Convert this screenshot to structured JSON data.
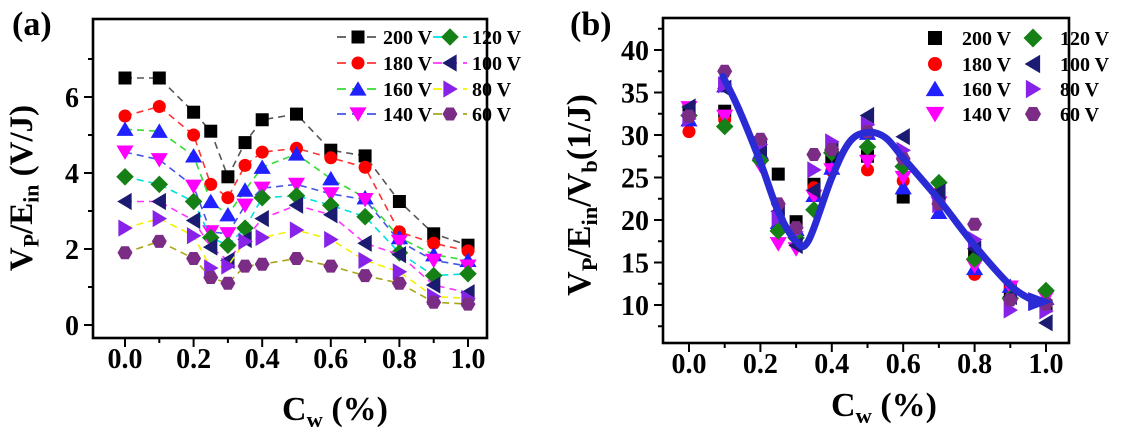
{
  "figure": {
    "background": "#ffffff"
  },
  "chart_data": [
    {
      "panel_label": "(a)",
      "type": "scatter",
      "xlabel": "Cw (%)",
      "ylabel": "VP/Ein (V/J)",
      "xlabel_parts": [
        {
          "t": "C"
        },
        {
          "t": "w",
          "sub": true
        },
        {
          "t": " (%)"
        }
      ],
      "ylabel_parts": [
        {
          "t": "V"
        },
        {
          "t": "P",
          "sub": true
        },
        {
          "t": "/E"
        },
        {
          "t": "in",
          "sub": true
        },
        {
          "t": " (V/J)"
        }
      ],
      "xlim": [
        -0.095,
        1.053
      ],
      "ylim": [
        -0.35,
        8.05
      ],
      "grid": false,
      "legend_position": "top-right-two-columns",
      "x_major_ticks": [
        {
          "v": 0.0,
          "label": "0.0"
        },
        {
          "v": 0.2,
          "label": "0.2"
        },
        {
          "v": 0.4,
          "label": "0.4"
        },
        {
          "v": 0.6,
          "label": "0.6"
        },
        {
          "v": 0.8,
          "label": "0.8"
        },
        {
          "v": 1.0,
          "label": "1.0"
        }
      ],
      "x_minor_ticks": [
        0.1,
        0.3,
        0.5,
        0.7,
        0.9
      ],
      "y_major_ticks": [
        {
          "v": 0,
          "label": "0"
        },
        {
          "v": 2,
          "label": "2"
        },
        {
          "v": 4,
          "label": "4"
        },
        {
          "v": 6,
          "label": "6"
        }
      ],
      "y_minor_ticks": [
        1,
        3,
        5,
        7
      ],
      "x": [
        0.0,
        0.1,
        0.2,
        0.25,
        0.3,
        0.35,
        0.4,
        0.5,
        0.6,
        0.7,
        0.8,
        0.9,
        1.0
      ],
      "series": [
        {
          "name": "200 V",
          "marker": "square",
          "color": "#000000",
          "line_color": "#555555",
          "values": [
            6.5,
            6.5,
            5.6,
            5.1,
            3.9,
            4.8,
            5.4,
            5.55,
            4.6,
            4.45,
            3.25,
            2.4,
            2.1
          ]
        },
        {
          "name": "180 V",
          "marker": "circle",
          "color": "#ff0000",
          "line_color": "#ff3333",
          "values": [
            5.5,
            5.75,
            5.0,
            3.7,
            3.35,
            4.2,
            4.55,
            4.65,
            4.4,
            4.15,
            2.45,
            2.15,
            1.95
          ]
        },
        {
          "name": "160 V",
          "marker": "tri-up",
          "color": "#2121ff",
          "line_color": "#33dd33",
          "values": [
            5.15,
            5.1,
            4.45,
            3.25,
            2.9,
            3.55,
            4.15,
            4.5,
            3.85,
            3.35,
            2.3,
            1.85,
            1.7
          ]
        },
        {
          "name": "140 V",
          "marker": "tri-down",
          "color": "#ff00ff",
          "line_color": "#4455e6",
          "values": [
            4.55,
            4.35,
            3.65,
            2.45,
            2.4,
            3.15,
            3.6,
            3.7,
            3.45,
            3.3,
            2.2,
            1.7,
            1.55
          ]
        },
        {
          "name": "120 V",
          "marker": "diamond",
          "color": "#158015",
          "line_color": "#00e0e0",
          "values": [
            3.9,
            3.7,
            3.25,
            2.3,
            2.1,
            2.55,
            3.35,
            3.4,
            3.15,
            2.85,
            1.9,
            1.3,
            1.35
          ]
        },
        {
          "name": "100 V",
          "marker": "tri-left",
          "color": "#1b1b72",
          "line_color": "#ff33ff",
          "values": [
            3.25,
            3.25,
            2.75,
            2.05,
            1.7,
            2.25,
            2.8,
            3.15,
            2.9,
            2.15,
            1.85,
            1.05,
            0.85
          ]
        },
        {
          "name": "80 V",
          "marker": "tri-right",
          "color": "#8822e8",
          "line_color": "#f2f200",
          "values": [
            2.55,
            2.8,
            2.35,
            1.5,
            1.55,
            2.2,
            2.3,
            2.5,
            2.25,
            1.7,
            1.4,
            0.75,
            0.7
          ]
        },
        {
          "name": "60 V",
          "marker": "hexagon",
          "color": "#7b2d85",
          "line_color": "#a6a618",
          "values": [
            1.9,
            2.2,
            1.75,
            1.25,
            1.1,
            1.55,
            1.6,
            1.75,
            1.55,
            1.3,
            1.1,
            0.6,
            0.55
          ]
        }
      ]
    },
    {
      "panel_label": "(b)",
      "type": "scatter",
      "xlabel": "Cw (%)",
      "ylabel": "VP/Ein/Vb(1/J)",
      "xlabel_parts": [
        {
          "t": "C"
        },
        {
          "t": "w",
          "sub": true
        },
        {
          "t": " (%)"
        }
      ],
      "ylabel_parts": [
        {
          "t": "V"
        },
        {
          "t": "P",
          "sub": true
        },
        {
          "t": "/E"
        },
        {
          "t": "in",
          "sub": true
        },
        {
          "t": "/V"
        },
        {
          "t": "b",
          "sub": true
        },
        {
          "t": "(1/J)"
        }
      ],
      "xlim": [
        -0.073,
        1.064
      ],
      "ylim": [
        5.5,
        43.8
      ],
      "grid": false,
      "legend_position": "top-right-two-columns",
      "x_major_ticks": [
        {
          "v": 0.0,
          "label": "0.0"
        },
        {
          "v": 0.2,
          "label": "0.2"
        },
        {
          "v": 0.4,
          "label": "0.4"
        },
        {
          "v": 0.6,
          "label": "0.6"
        },
        {
          "v": 0.8,
          "label": "0.8"
        },
        {
          "v": 1.0,
          "label": "1.0"
        }
      ],
      "x_minor_ticks": [
        0.1,
        0.3,
        0.5,
        0.7,
        0.9
      ],
      "y_major_ticks": [
        {
          "v": 10,
          "label": "10"
        },
        {
          "v": 15,
          "label": "15"
        },
        {
          "v": 20,
          "label": "20"
        },
        {
          "v": 25,
          "label": "25"
        },
        {
          "v": 30,
          "label": "30"
        },
        {
          "v": 35,
          "label": "35"
        },
        {
          "v": 40,
          "label": "40"
        }
      ],
      "y_minor_ticks": [
        7.5,
        12.5,
        17.5,
        22.5,
        27.5,
        32.5,
        37.5,
        42.5
      ],
      "x": [
        0.0,
        0.1,
        0.2,
        0.25,
        0.3,
        0.35,
        0.4,
        0.5,
        0.6,
        0.7,
        0.8,
        0.9,
        1.0
      ],
      "series": [
        {
          "name": "200 V",
          "marker": "square",
          "color": "#000000",
          "values": [
            33.0,
            32.8,
            28.3,
            25.4,
            19.8,
            24.2,
            27.1,
            27.5,
            22.7,
            22.8,
            16.4,
            11.8,
            9.9
          ]
        },
        {
          "name": "180 V",
          "marker": "circle",
          "color": "#ff0000",
          "values": [
            30.4,
            31.8,
            27.4,
            20.8,
            18.4,
            23.8,
            25.8,
            25.9,
            24.6,
            23.2,
            13.6,
            11.9,
            10.3
          ]
        },
        {
          "name": "160 V",
          "marker": "tri-up",
          "color": "#2121ff",
          "values": [
            31.8,
            35.8,
            27.9,
            19.7,
            18.9,
            22.9,
            26.1,
            30.2,
            23.8,
            20.9,
            14.3,
            12.2,
            10.8
          ]
        },
        {
          "name": "140 V",
          "marker": "tri-down",
          "color": "#ff00ff",
          "values": [
            33.2,
            32.2,
            26.4,
            17.2,
            16.6,
            22.8,
            25.9,
            26.9,
            25.0,
            22.0,
            14.6,
            12.1,
            10.9
          ]
        },
        {
          "name": "120 V",
          "marker": "diamond",
          "color": "#158015",
          "values": [
            32.3,
            31.0,
            27.0,
            18.7,
            17.9,
            21.2,
            27.9,
            28.6,
            26.3,
            24.4,
            15.4,
            10.8,
            11.7
          ]
        },
        {
          "name": "100 V",
          "marker": "tri-left",
          "color": "#1b1b72",
          "values": [
            33.3,
            35.5,
            28.4,
            21.0,
            17.0,
            23.5,
            28.2,
            32.3,
            29.8,
            23.3,
            16.6,
            11.0,
            7.9
          ]
        },
        {
          "name": "80 V",
          "marker": "tri-right",
          "color": "#8822e8",
          "values": [
            31.9,
            35.9,
            28.9,
            20.2,
            18.6,
            25.9,
            29.2,
            31.2,
            28.2,
            21.8,
            17.7,
            9.4,
            9.3
          ]
        },
        {
          "name": "60 V",
          "marker": "hexagon",
          "color": "#7b2d85",
          "values": [
            32.2,
            37.5,
            29.5,
            21.9,
            19.1,
            27.7,
            28.3,
            30.4,
            27.2,
            21.9,
            19.5,
            10.6,
            10.1
          ]
        }
      ],
      "fit_curve": {
        "color": "#2b2bd5",
        "width": 7,
        "arrow_end": [
          1.02,
          10.4
        ],
        "points": [
          [
            0.095,
            36.9
          ],
          [
            0.14,
            33.0
          ],
          [
            0.2,
            26.8
          ],
          [
            0.25,
            21.0
          ],
          [
            0.3,
            17.5
          ],
          [
            0.335,
            17.6
          ],
          [
            0.4,
            25.0
          ],
          [
            0.45,
            29.2
          ],
          [
            0.5,
            30.3
          ],
          [
            0.55,
            29.7
          ],
          [
            0.6,
            27.3
          ],
          [
            0.7,
            22.4
          ],
          [
            0.8,
            17.0
          ],
          [
            0.9,
            12.3
          ],
          [
            0.96,
            10.6
          ]
        ]
      }
    }
  ]
}
